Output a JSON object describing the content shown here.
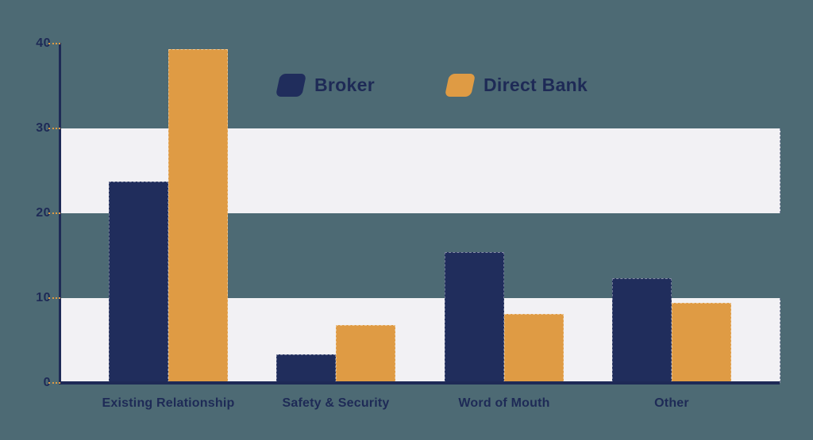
{
  "chart_data": {
    "type": "bar",
    "title": "",
    "xlabel": "",
    "ylabel": "",
    "categories": [
      "Existing Relationship",
      "Safety & Security",
      "Word of Mouth",
      "Other"
    ],
    "series": [
      {
        "name": "Broker",
        "color": "#202D5C",
        "values": [
          23.7,
          3.4,
          15.4,
          12.3
        ]
      },
      {
        "name": "Direct Bank",
        "color": "#DF9B44",
        "values": [
          39.3,
          6.8,
          8.1,
          9.4
        ]
      }
    ],
    "y_ticks": [
      "0",
      "10",
      "20",
      "30",
      "40"
    ],
    "ylim": [
      0,
      40
    ],
    "grid": "horizontal-bands",
    "bands": [
      [
        0,
        10
      ],
      [
        20,
        30
      ]
    ],
    "legend_position": "top-center",
    "colors": {
      "background": "#4D6A74",
      "band_fill": "#F2F1F4",
      "axis": "#1E2A56",
      "tick_dash": "#DF9B44",
      "text": "#1E2A56"
    }
  }
}
